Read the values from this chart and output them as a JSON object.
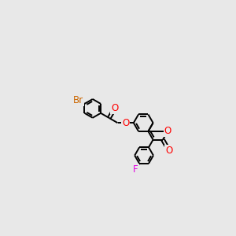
{
  "bg_color": "#e8e8e8",
  "bond_color": "#000000",
  "atom_colors": {
    "O": "#ff0000",
    "F": "#e000e0",
    "Br": "#cc6600",
    "C": "#000000"
  },
  "bond_width": 1.4,
  "font_size": 8.5,
  "fig_width": 3.0,
  "fig_height": 3.0,
  "xlim": [
    0,
    12
  ],
  "ylim": [
    0,
    12
  ]
}
